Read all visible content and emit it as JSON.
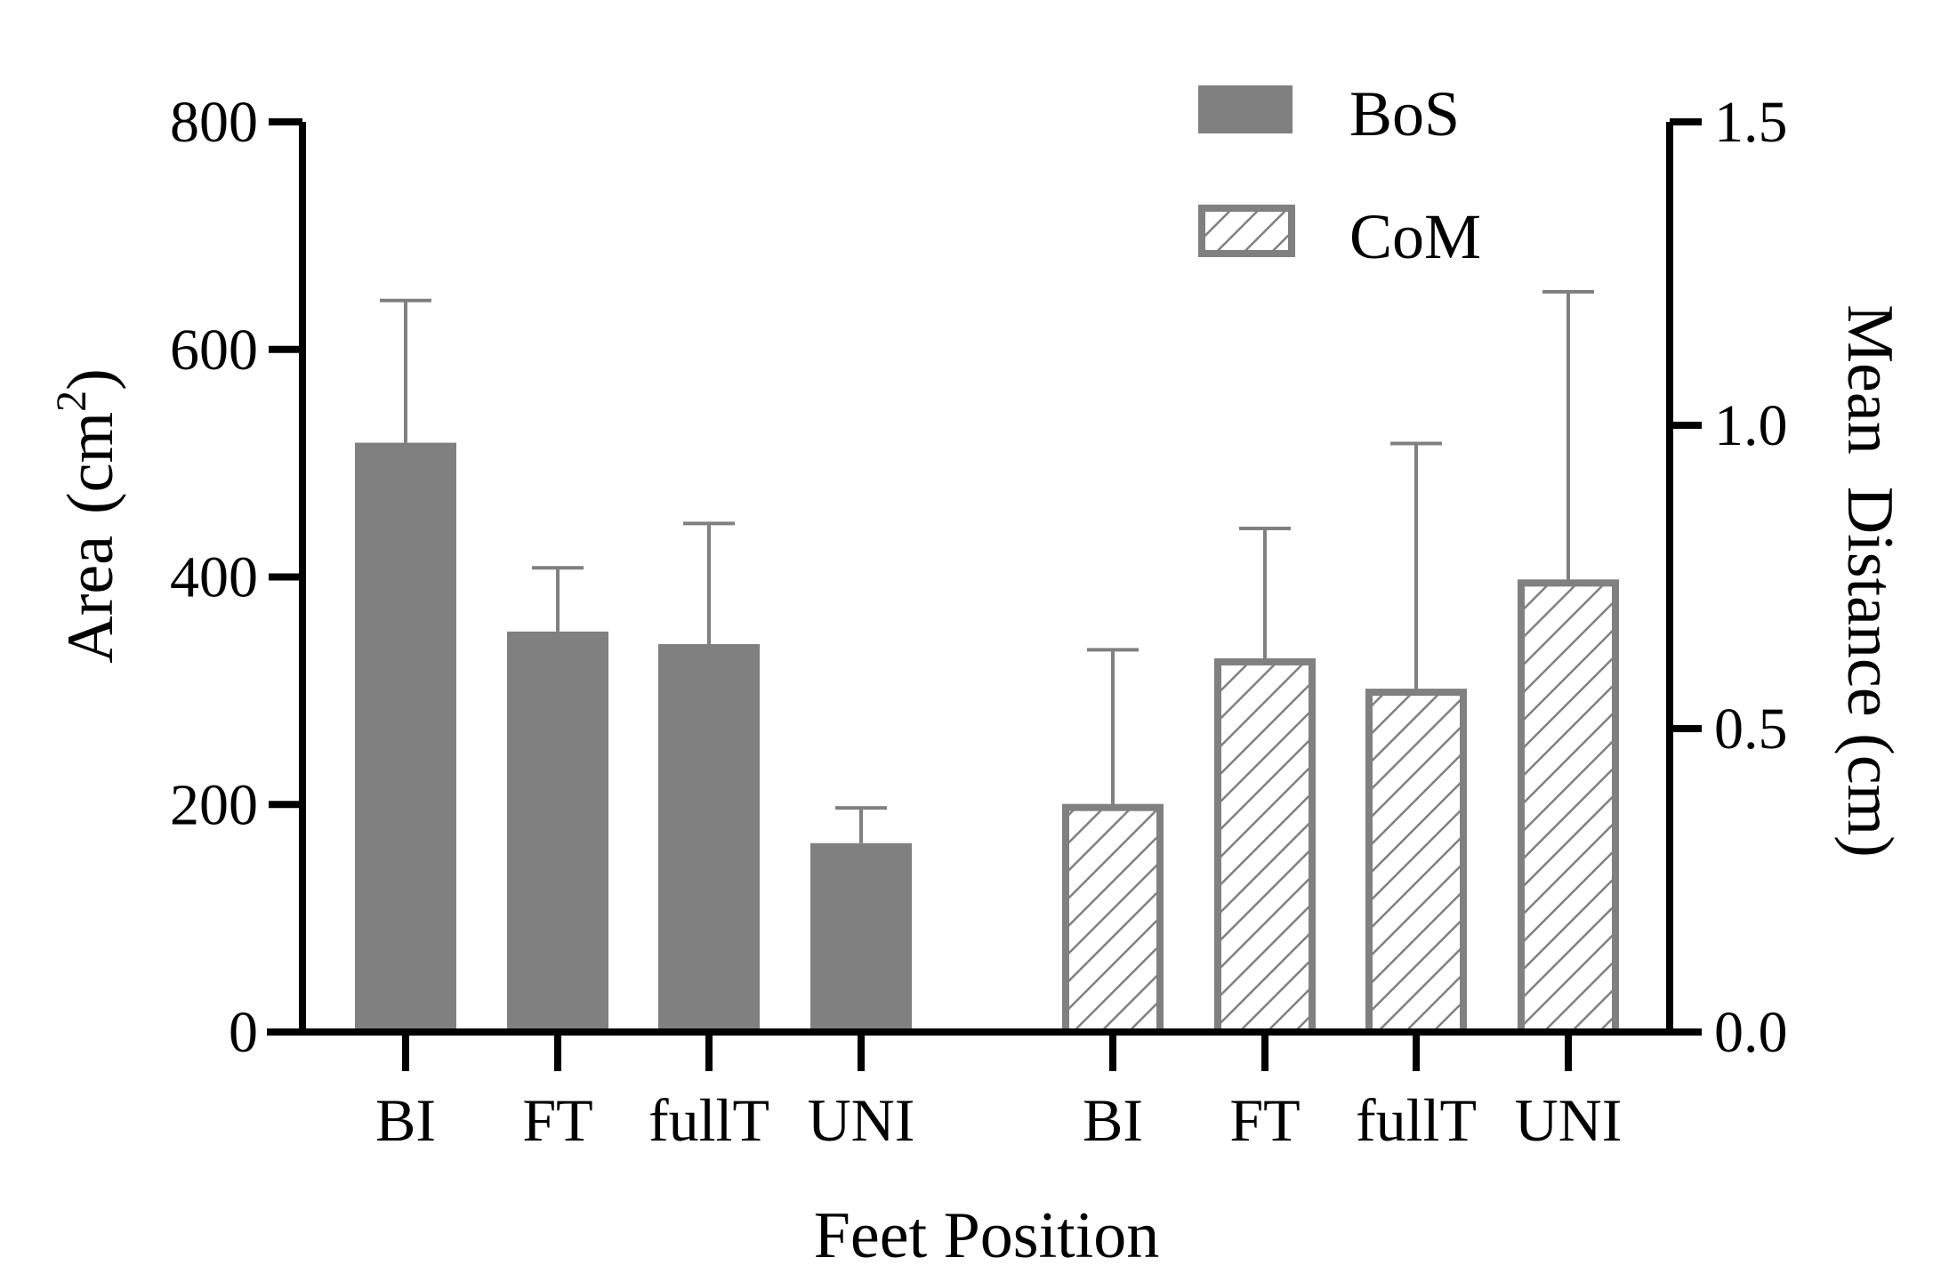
{
  "chart_data": {
    "type": "bar",
    "xlabel": "Feet Position",
    "ylabel": {
      "text_before": "Area",
      "paren_open": "(cm",
      "superscript": "2",
      "paren_close": ")"
    },
    "ylabel_right": {
      "word1": "Mean",
      "word2": "Distance (cm)"
    },
    "left_axis": {
      "ylim": [
        0,
        800
      ],
      "ticks": [
        "0",
        "200",
        "400",
        "600",
        "800"
      ]
    },
    "right_axis": {
      "ylim": [
        0,
        1.5
      ],
      "ticks": [
        "0.0",
        "0.5",
        "1.0",
        "1.5"
      ]
    },
    "legend": {
      "position": "top-right"
    },
    "series": [
      {
        "name": "BoS",
        "axis": "left",
        "style": "solid",
        "color": "#808080",
        "categories": [
          "BI",
          "FT",
          "fullT",
          "UNI"
        ],
        "values": [
          518,
          352,
          341,
          166
        ],
        "errors": [
          125,
          56,
          106,
          31
        ]
      },
      {
        "name": "CoM",
        "axis": "right",
        "style": "hatched",
        "color": "#808080",
        "categories": [
          "BI",
          "FT",
          "fullT",
          "UNI"
        ],
        "values": [
          0.37,
          0.61,
          0.56,
          0.74
        ],
        "errors": [
          0.26,
          0.22,
          0.41,
          0.48
        ]
      }
    ]
  }
}
